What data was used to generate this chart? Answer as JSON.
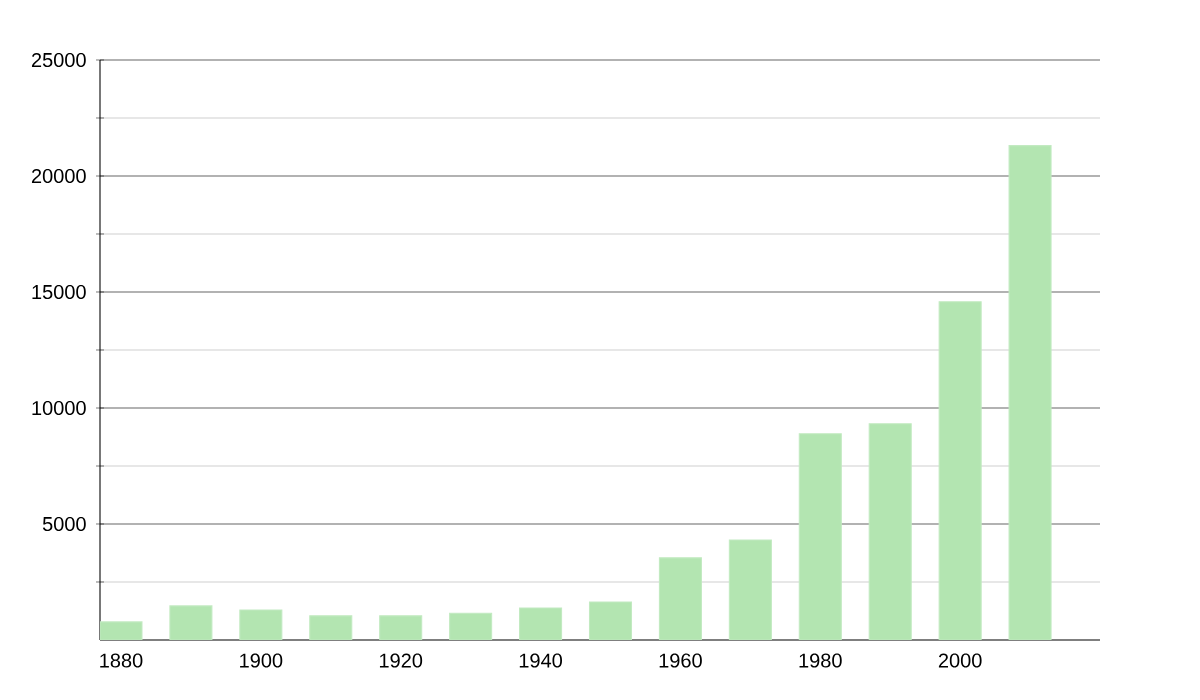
{
  "chart_data": {
    "type": "bar",
    "x": [
      1880,
      1890,
      1900,
      1910,
      1920,
      1930,
      1940,
      1950,
      1960,
      1970,
      1980,
      1990,
      2000,
      2010
    ],
    "values": [
      780,
      1470,
      1290,
      1040,
      1040,
      1150,
      1380,
      1640,
      3540,
      4310,
      8890,
      9320,
      14580,
      21310
    ],
    "color": "#b3e5b1",
    "xlim": [
      1877,
      2020
    ],
    "xticks": [
      1880,
      1900,
      1920,
      1940,
      1960,
      1980,
      2000
    ],
    "ylim": [
      0,
      25000
    ],
    "yticks": [
      {
        "value": 2500,
        "label": null
      },
      5000,
      {
        "value": 7500,
        "label": null
      },
      10000,
      {
        "value": 12500,
        "label": null
      },
      15000,
      {
        "value": 17500,
        "label": null
      },
      20000,
      {
        "value": 22500,
        "label": null
      },
      25000
    ],
    "grid": "y"
  }
}
